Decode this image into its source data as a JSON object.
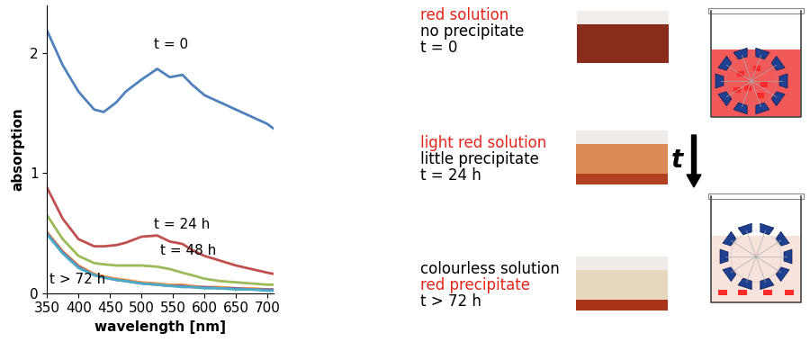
{
  "chart_data": {
    "type": "line",
    "x_label": "wavelength [nm]",
    "y_label": "absorption",
    "xlim": [
      350,
      710
    ],
    "xticks": [
      350,
      400,
      450,
      500,
      550,
      600,
      650,
      700
    ],
    "ylim": [
      0,
      2.4
    ],
    "yticks": [
      0,
      1,
      2
    ],
    "grid": false,
    "x": [
      350,
      375,
      400,
      425,
      440,
      460,
      475,
      500,
      525,
      545,
      565,
      580,
      600,
      625,
      650,
      675,
      700,
      710
    ],
    "series": [
      {
        "name": "t = 0",
        "color": "#4f81bd",
        "values": [
          2.19,
          1.9,
          1.68,
          1.53,
          1.51,
          1.59,
          1.68,
          1.78,
          1.87,
          1.8,
          1.82,
          1.74,
          1.65,
          1.59,
          1.53,
          1.47,
          1.41,
          1.37
        ]
      },
      {
        "name": "t = 24 h",
        "color": "#c0504d",
        "values": [
          0.88,
          0.62,
          0.45,
          0.39,
          0.39,
          0.4,
          0.42,
          0.47,
          0.48,
          0.43,
          0.41,
          0.36,
          0.31,
          0.27,
          0.23,
          0.2,
          0.17,
          0.16
        ]
      },
      {
        "name": "t = 48 h",
        "color": "#9bbb59",
        "values": [
          0.65,
          0.45,
          0.31,
          0.25,
          0.24,
          0.23,
          0.23,
          0.23,
          0.22,
          0.2,
          0.17,
          0.15,
          0.12,
          0.1,
          0.09,
          0.08,
          0.07,
          0.07
        ]
      },
      {
        "name": "t > 72 h",
        "color": "#f79646",
        "values": [
          0.51,
          0.35,
          0.23,
          0.16,
          0.14,
          0.12,
          0.11,
          0.09,
          0.08,
          0.07,
          0.07,
          0.06,
          0.05,
          0.05,
          0.04,
          0.04,
          0.03,
          0.03
        ]
      },
      {
        "color": "#8064a2",
        "values": [
          0.5,
          0.34,
          0.22,
          0.15,
          0.13,
          0.11,
          0.1,
          0.08,
          0.07,
          0.06,
          0.06,
          0.05,
          0.05,
          0.04,
          0.04,
          0.03,
          0.03,
          0.03
        ]
      },
      {
        "color": "#4bacc6",
        "values": [
          0.49,
          0.33,
          0.21,
          0.15,
          0.13,
          0.11,
          0.1,
          0.08,
          0.07,
          0.06,
          0.05,
          0.05,
          0.04,
          0.04,
          0.03,
          0.03,
          0.02,
          0.02
        ]
      }
    ]
  },
  "side_panel": {
    "stages": [
      [
        {
          "text": "red solution",
          "color": "#e3261b"
        },
        {
          "text": "no precipitate",
          "color": "#000000"
        },
        {
          "text": "t = 0",
          "color": "#000000"
        }
      ],
      [
        {
          "text": "light red solution",
          "color": "#e3261b"
        },
        {
          "text": "little precipitate",
          "color": "#000000"
        },
        {
          "text": "t = 24 h",
          "color": "#000000"
        }
      ],
      [
        {
          "text": "colourless solution",
          "color": "#000000"
        },
        {
          "text": "red precipitate",
          "color": "#e3261b"
        },
        {
          "text": "t > 72 h",
          "color": "#000000"
        }
      ]
    ],
    "arrow_label": "t"
  }
}
